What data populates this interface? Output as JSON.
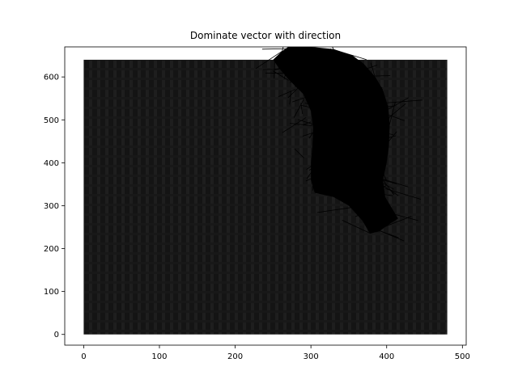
{
  "chart_data": {
    "type": "heatmap",
    "title": "Dominate vector with direction",
    "xlabel": "",
    "ylabel": "",
    "xlim": [
      -25,
      505
    ],
    "ylim": [
      -25,
      670
    ],
    "image_extent": {
      "x": [
        0,
        480
      ],
      "y": [
        0,
        640
      ]
    },
    "x_ticks": [
      0,
      100,
      200,
      300,
      400,
      500
    ],
    "y_ticks": [
      0,
      100,
      200,
      300,
      400,
      500,
      600
    ],
    "x_tick_labels": [
      "0",
      "100",
      "200",
      "300",
      "400",
      "500"
    ],
    "y_tick_labels": [
      "0",
      "100",
      "200",
      "300",
      "400",
      "500",
      "600"
    ],
    "grid": false,
    "legend": "none",
    "background_colormap": "gray",
    "vector_color": "#000000",
    "vector_region_outline": [
      [
        270,
        670
      ],
      [
        300,
        670
      ],
      [
        330,
        665
      ],
      [
        355,
        650
      ],
      [
        370,
        630
      ],
      [
        385,
        600
      ],
      [
        395,
        570
      ],
      [
        402,
        530
      ],
      [
        404,
        490
      ],
      [
        403,
        440
      ],
      [
        400,
        400
      ],
      [
        395,
        360
      ],
      [
        398,
        320
      ],
      [
        410,
        285
      ],
      [
        415,
        270
      ],
      [
        402,
        255
      ],
      [
        390,
        240
      ],
      [
        378,
        235
      ],
      [
        368,
        265
      ],
      [
        350,
        300
      ],
      [
        330,
        320
      ],
      [
        305,
        330
      ],
      [
        300,
        360
      ],
      [
        300,
        400
      ],
      [
        302,
        440
      ],
      [
        303,
        480
      ],
      [
        300,
        520
      ],
      [
        290,
        560
      ],
      [
        270,
        595
      ],
      [
        258,
        620
      ],
      [
        250,
        640
      ],
      [
        262,
        660
      ]
    ]
  }
}
